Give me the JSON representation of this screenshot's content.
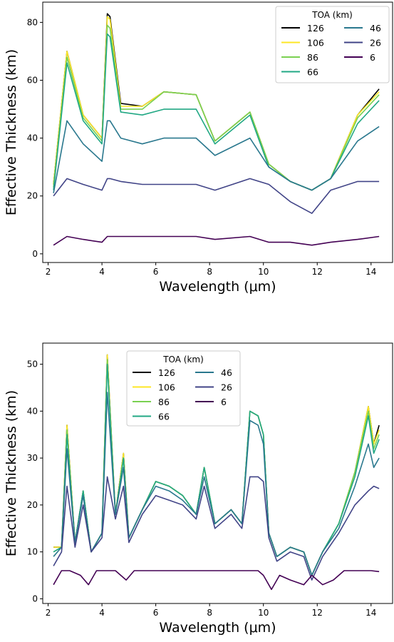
{
  "chart_data": [
    {
      "type": "line",
      "title": "",
      "xlabel": "Wavelength (μm)",
      "ylabel": "Effective Thickness (km)",
      "xlim": [
        1.8,
        14.8
      ],
      "ylim": [
        -3,
        87
      ],
      "xticks": [
        2,
        4,
        6,
        8,
        10,
        12,
        14
      ],
      "yticks": [
        0,
        20,
        40,
        60,
        80
      ],
      "grid": false,
      "legend": {
        "title": "TOA (km)",
        "placement": "top-right",
        "columns": 2
      },
      "series": [
        {
          "name": "126",
          "color": "#000000",
          "x": [
            2.2,
            2.7,
            3.3,
            4.0,
            4.2,
            4.3,
            4.7,
            5.5,
            6.3,
            7.5,
            8.2,
            9.5,
            10.2,
            11.0,
            11.8,
            12.5,
            13.5,
            14.3
          ],
          "y": [
            24,
            70,
            48,
            40,
            83,
            82,
            52,
            51,
            56,
            55,
            39,
            49,
            31,
            25,
            22,
            26,
            48,
            57
          ]
        },
        {
          "name": "106",
          "color": "#fde725",
          "x": [
            2.2,
            2.7,
            3.3,
            4.0,
            4.2,
            4.3,
            4.7,
            5.5,
            6.3,
            7.5,
            8.2,
            9.5,
            10.2,
            11.0,
            11.8,
            12.5,
            13.5,
            14.3
          ],
          "y": [
            24,
            70,
            48,
            40,
            82,
            81,
            51,
            51,
            56,
            55,
            39,
            49,
            31,
            25,
            22,
            26,
            48,
            56
          ]
        },
        {
          "name": "86",
          "color": "#7ad151",
          "x": [
            2.2,
            2.7,
            3.3,
            4.0,
            4.2,
            4.3,
            4.7,
            5.5,
            6.3,
            7.5,
            8.2,
            9.5,
            10.2,
            11.0,
            11.8,
            12.5,
            13.5,
            14.3
          ],
          "y": [
            23,
            68,
            47,
            39,
            79,
            78,
            50,
            50,
            56,
            55,
            39,
            49,
            31,
            25,
            22,
            26,
            47,
            55
          ]
        },
        {
          "name": "66",
          "color": "#22a884",
          "x": [
            2.2,
            2.7,
            3.3,
            4.0,
            4.2,
            4.3,
            4.7,
            5.5,
            6.3,
            7.5,
            8.2,
            9.5,
            10.2,
            11.0,
            11.8,
            12.5,
            13.5,
            14.3
          ],
          "y": [
            22,
            66,
            46,
            38,
            76,
            75,
            49,
            48,
            50,
            50,
            38,
            48,
            30,
            25,
            22,
            26,
            45,
            53
          ]
        },
        {
          "name": "46",
          "color": "#2a788e",
          "x": [
            2.2,
            2.7,
            3.3,
            4.0,
            4.2,
            4.3,
            4.7,
            5.5,
            6.3,
            7.5,
            8.2,
            9.5,
            10.2,
            11.0,
            11.8,
            12.5,
            13.5,
            14.3
          ],
          "y": [
            21,
            46,
            38,
            32,
            46,
            46,
            40,
            38,
            40,
            40,
            34,
            40,
            30,
            25,
            22,
            26,
            39,
            44
          ]
        },
        {
          "name": "26",
          "color": "#414487",
          "x": [
            2.2,
            2.7,
            3.3,
            4.0,
            4.2,
            4.3,
            4.7,
            5.5,
            6.3,
            7.5,
            8.2,
            9.5,
            10.2,
            11.0,
            11.8,
            12.5,
            13.5,
            14.3
          ],
          "y": [
            20,
            26,
            24,
            22,
            26,
            26,
            25,
            24,
            24,
            24,
            22,
            26,
            24,
            18,
            14,
            22,
            25,
            25
          ]
        },
        {
          "name": "6",
          "color": "#440154",
          "x": [
            2.2,
            2.7,
            3.3,
            4.0,
            4.2,
            4.3,
            4.7,
            5.5,
            6.3,
            7.5,
            8.2,
            9.5,
            10.2,
            11.0,
            11.8,
            12.5,
            13.5,
            14.3
          ],
          "y": [
            3,
            6,
            5,
            4,
            6,
            6,
            6,
            6,
            6,
            6,
            5,
            6,
            4,
            4,
            3,
            4,
            5,
            6
          ]
        }
      ]
    },
    {
      "type": "line",
      "title": "",
      "xlabel": "Wavelength (μm)",
      "ylabel": "Effective Thickness (km)",
      "xlim": [
        1.8,
        14.8
      ],
      "ylim": [
        -1,
        54.5
      ],
      "xticks": [
        2,
        4,
        6,
        8,
        10,
        12,
        14
      ],
      "yticks": [
        0,
        10,
        20,
        30,
        40,
        50
      ],
      "grid": false,
      "legend": {
        "title": "TOA (km)",
        "placement": "top-center",
        "columns": 2
      },
      "series": [
        {
          "name": "126",
          "color": "#000000",
          "x": [
            2.2,
            2.5,
            2.7,
            3.0,
            3.3,
            3.6,
            4.0,
            4.2,
            4.5,
            4.8,
            5.0,
            5.5,
            6.0,
            6.5,
            7.0,
            7.5,
            7.8,
            8.2,
            8.8,
            9.2,
            9.5,
            9.8,
            10.0,
            10.2,
            10.5,
            11.0,
            11.5,
            11.8,
            12.2,
            12.8,
            13.4,
            13.9,
            14.1,
            14.3
          ],
          "y": [
            11,
            11,
            37,
            12,
            23,
            10,
            14,
            52,
            18,
            31,
            13,
            19,
            25,
            24,
            22,
            18,
            28,
            16,
            19,
            16,
            40,
            39,
            35,
            14,
            9,
            11,
            10,
            5,
            10,
            16,
            27,
            41,
            33,
            37
          ]
        },
        {
          "name": "106",
          "color": "#fde725",
          "x": [
            2.2,
            2.5,
            2.7,
            3.0,
            3.3,
            3.6,
            4.0,
            4.2,
            4.5,
            4.8,
            5.0,
            5.5,
            6.0,
            6.5,
            7.0,
            7.5,
            7.8,
            8.2,
            8.8,
            9.2,
            9.5,
            9.8,
            10.0,
            10.2,
            10.5,
            11.0,
            11.5,
            11.8,
            12.2,
            12.8,
            13.4,
            13.9,
            14.1,
            14.3
          ],
          "y": [
            11,
            11,
            37,
            12,
            23,
            10,
            14,
            52,
            18,
            31,
            13,
            19,
            25,
            24,
            22,
            18,
            28,
            16,
            19,
            16,
            40,
            39,
            35,
            14,
            9,
            11,
            10,
            5,
            10,
            16,
            27,
            41,
            33,
            36
          ]
        },
        {
          "name": "86",
          "color": "#7ad151",
          "x": [
            2.2,
            2.5,
            2.7,
            3.0,
            3.3,
            3.6,
            4.0,
            4.2,
            4.5,
            4.8,
            5.0,
            5.5,
            6.0,
            6.5,
            7.0,
            7.5,
            7.8,
            8.2,
            8.8,
            9.2,
            9.5,
            9.8,
            10.0,
            10.2,
            10.5,
            11.0,
            11.5,
            11.8,
            12.2,
            12.8,
            13.4,
            13.9,
            14.1,
            14.3
          ],
          "y": [
            10,
            11,
            36,
            12,
            23,
            10,
            14,
            51,
            18,
            30,
            13,
            19,
            25,
            24,
            22,
            18,
            28,
            16,
            19,
            16,
            40,
            39,
            35,
            14,
            9,
            11,
            10,
            5,
            10,
            16,
            27,
            40,
            32,
            35
          ]
        },
        {
          "name": "66",
          "color": "#22a884",
          "x": [
            2.2,
            2.5,
            2.7,
            3.0,
            3.3,
            3.6,
            4.0,
            4.2,
            4.5,
            4.8,
            5.0,
            5.5,
            6.0,
            6.5,
            7.0,
            7.5,
            7.8,
            8.2,
            8.8,
            9.2,
            9.5,
            9.8,
            10.0,
            10.2,
            10.5,
            11.0,
            11.5,
            11.8,
            12.2,
            12.8,
            13.4,
            13.9,
            14.1,
            14.3
          ],
          "y": [
            10,
            11,
            35,
            12,
            23,
            10,
            14,
            50,
            18,
            30,
            13,
            19,
            25,
            24,
            22,
            18,
            28,
            16,
            19,
            16,
            40,
            39,
            35,
            14,
            9,
            11,
            10,
            5,
            10,
            16,
            26,
            39,
            31,
            34
          ]
        },
        {
          "name": "46",
          "color": "#2a788e",
          "x": [
            2.2,
            2.5,
            2.7,
            3.0,
            3.3,
            3.6,
            4.0,
            4.2,
            4.5,
            4.8,
            5.0,
            5.5,
            6.0,
            6.5,
            7.0,
            7.5,
            7.8,
            8.2,
            8.8,
            9.2,
            9.5,
            9.8,
            10.0,
            10.2,
            10.5,
            11.0,
            11.5,
            11.8,
            12.2,
            12.8,
            13.4,
            13.9,
            14.1,
            14.3
          ],
          "y": [
            9,
            11,
            32,
            12,
            22,
            10,
            14,
            44,
            18,
            28,
            13,
            19,
            24,
            23,
            21,
            18,
            26,
            16,
            19,
            16,
            38,
            37,
            33,
            14,
            9,
            11,
            10,
            5,
            10,
            15,
            24,
            33,
            28,
            30
          ]
        },
        {
          "name": "26",
          "color": "#414487",
          "x": [
            2.2,
            2.5,
            2.7,
            3.0,
            3.3,
            3.6,
            4.0,
            4.2,
            4.5,
            4.8,
            5.0,
            5.5,
            6.0,
            6.5,
            7.0,
            7.5,
            7.8,
            8.2,
            8.8,
            9.2,
            9.5,
            9.8,
            10.0,
            10.2,
            10.5,
            11.0,
            11.5,
            11.8,
            12.2,
            12.8,
            13.4,
            13.9,
            14.1,
            14.3
          ],
          "y": [
            7,
            10,
            24,
            11,
            20,
            10,
            13,
            26,
            17,
            24,
            12,
            18,
            22,
            21,
            20,
            17,
            24,
            15,
            18,
            15,
            26,
            26,
            25,
            13,
            8,
            10,
            9,
            4,
            9,
            14,
            20,
            23,
            24,
            23.5
          ]
        },
        {
          "name": "6",
          "color": "#440154",
          "x": [
            2.2,
            2.5,
            2.8,
            3.2,
            3.5,
            3.8,
            4.1,
            4.5,
            4.9,
            5.2,
            6.0,
            7.0,
            8.0,
            9.0,
            9.8,
            10.0,
            10.3,
            10.6,
            11.0,
            11.5,
            11.8,
            12.2,
            12.6,
            13.0,
            13.5,
            14.0,
            14.3
          ],
          "y": [
            3,
            6,
            6,
            5,
            3,
            6,
            6,
            6,
            4,
            6,
            6,
            6,
            6,
            6,
            6,
            5,
            2,
            5,
            4,
            3,
            5,
            3,
            4,
            6,
            6,
            6,
            5.8
          ]
        }
      ]
    }
  ]
}
